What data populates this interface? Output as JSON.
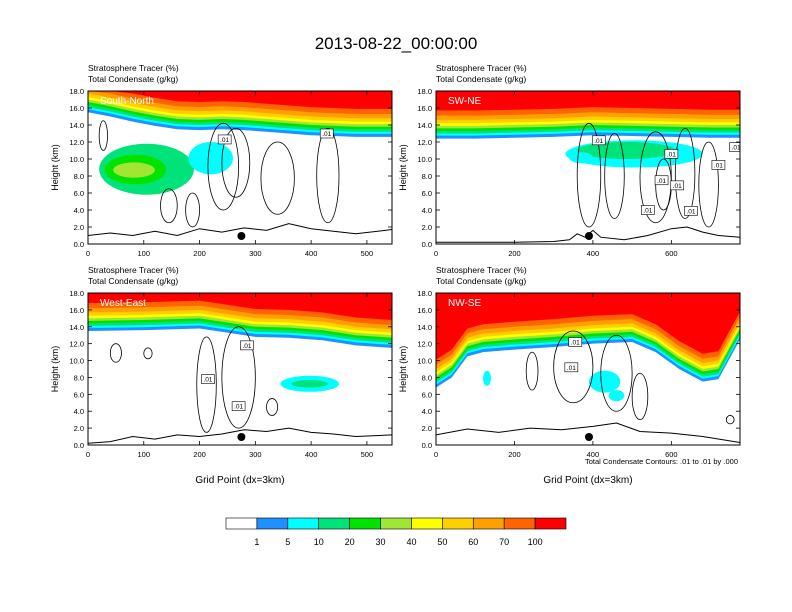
{
  "figure": {
    "title": "2013-08-22_00:00:00",
    "footnote": "Total Condensate Contours: .01 to .01 by .000"
  },
  "chart_data": [
    {
      "type": "heatmap",
      "label": "South-North",
      "subtitle_lines": [
        "Stratosphere Tracer   (%)",
        "Total Condensate   (g/kg)"
      ],
      "ylabel": "Height (km)",
      "xlabel": "",
      "xlim": [
        0,
        545
      ],
      "ylim": [
        0,
        18
      ],
      "xticks": [
        0,
        100,
        200,
        300,
        400,
        500
      ],
      "yticks": [
        "0.0",
        "2.0",
        "4.0",
        "6.0",
        "8.0",
        "10.0",
        "12.0",
        "14.0",
        "16.0",
        "18.0"
      ],
      "dot_x": 275,
      "tracer_base": [
        [
          0,
          15.5
        ],
        [
          40,
          15.0
        ],
        [
          80,
          14.4
        ],
        [
          120,
          13.9
        ],
        [
          160,
          13.5
        ],
        [
          200,
          13.4
        ],
        [
          240,
          13.5
        ],
        [
          280,
          13.4
        ],
        [
          320,
          13.2
        ],
        [
          360,
          13.0
        ],
        [
          400,
          12.8
        ],
        [
          440,
          12.7
        ],
        [
          480,
          12.6
        ],
        [
          545,
          12.6
        ]
      ],
      "low_blobs": [
        {
          "x": [
            20,
            190
          ],
          "y": [
            5.8,
            11.8
          ],
          "level": 10
        },
        {
          "x": [
            30,
            140
          ],
          "y": [
            7.0,
            10.5
          ],
          "level": 20
        },
        {
          "x": [
            45,
            120
          ],
          "y": [
            7.8,
            9.6
          ],
          "level": 30
        },
        {
          "x": [
            180,
            260
          ],
          "y": [
            8.2,
            12.0
          ],
          "level": 5
        }
      ],
      "contour_labels": [
        {
          "x": 245,
          "y": 12.3,
          "text": ".01"
        },
        {
          "x": 428,
          "y": 13.0,
          "text": ".01"
        }
      ],
      "terrain": [
        [
          0,
          1.0
        ],
        [
          40,
          1.3
        ],
        [
          80,
          1.0
        ],
        [
          120,
          1.5
        ],
        [
          160,
          1.0
        ],
        [
          200,
          1.8
        ],
        [
          240,
          1.4
        ],
        [
          280,
          1.9
        ],
        [
          320,
          1.6
        ],
        [
          360,
          2.4
        ],
        [
          400,
          1.8
        ],
        [
          440,
          1.5
        ],
        [
          480,
          1.2
        ],
        [
          545,
          1.7
        ]
      ],
      "cloud_contours": [
        {
          "x": [
            215,
            270
          ],
          "y": [
            4.0,
            14.2
          ]
        },
        {
          "x": [
            240,
            290
          ],
          "y": [
            5.5,
            13.6
          ]
        },
        {
          "x": [
            310,
            370
          ],
          "y": [
            3.5,
            12.0
          ]
        },
        {
          "x": [
            410,
            450
          ],
          "y": [
            2.5,
            13.6
          ]
        },
        {
          "x": [
            130,
            160
          ],
          "y": [
            2.5,
            6.5
          ]
        },
        {
          "x": [
            175,
            200
          ],
          "y": [
            2.0,
            6.0
          ]
        },
        {
          "x": [
            20,
            35
          ],
          "y": [
            11.0,
            14.5
          ]
        }
      ]
    },
    {
      "type": "heatmap",
      "label": "SW-NE",
      "subtitle_lines": [
        "Stratosphere Tracer   (%)",
        "Total Condensate   (g/kg)"
      ],
      "ylabel": "Height (km)",
      "xlabel": "",
      "xlim": [
        0,
        775
      ],
      "ylim": [
        0,
        18
      ],
      "xticks": [
        0,
        200,
        400,
        600
      ],
      "yticks": [
        "0.0",
        "2.0",
        "4.0",
        "6.0",
        "8.0",
        "10.0",
        "12.0",
        "14.0",
        "16.0",
        "18.0"
      ],
      "dot_x": 390,
      "tracer_base": [
        [
          0,
          12.4
        ],
        [
          100,
          12.4
        ],
        [
          200,
          12.5
        ],
        [
          300,
          12.6
        ],
        [
          400,
          12.8
        ],
        [
          500,
          12.7
        ],
        [
          600,
          12.6
        ],
        [
          700,
          12.5
        ],
        [
          775,
          12.5
        ]
      ],
      "low_blobs": [
        {
          "x": [
            330,
            680
          ],
          "y": [
            9.0,
            12.2
          ],
          "level": 5
        },
        {
          "x": [
            360,
            610
          ],
          "y": [
            10.0,
            12.0
          ],
          "level": 10
        },
        {
          "x": [
            340,
            400
          ],
          "y": [
            9.5,
            10.8
          ],
          "level": 5
        }
      ],
      "contour_labels": [
        {
          "x": 415,
          "y": 12.2,
          "text": ".01"
        },
        {
          "x": 600,
          "y": 10.6,
          "text": ".01"
        },
        {
          "x": 720,
          "y": 9.3,
          "text": ".01"
        },
        {
          "x": 575,
          "y": 7.5,
          "text": ".01"
        },
        {
          "x": 615,
          "y": 6.9,
          "text": ".01"
        },
        {
          "x": 540,
          "y": 4.0,
          "text": ".01"
        },
        {
          "x": 650,
          "y": 3.9,
          "text": ".01"
        },
        {
          "x": 765,
          "y": 11.4,
          "text": ".01"
        }
      ],
      "terrain": [
        [
          0,
          0.2
        ],
        [
          200,
          0.2
        ],
        [
          300,
          0.3
        ],
        [
          340,
          0.5
        ],
        [
          360,
          1.2
        ],
        [
          380,
          0.8
        ],
        [
          400,
          1.6
        ],
        [
          420,
          0.8
        ],
        [
          480,
          0.5
        ],
        [
          540,
          1.0
        ],
        [
          600,
          1.8
        ],
        [
          640,
          2.0
        ],
        [
          680,
          1.4
        ],
        [
          720,
          1.0
        ],
        [
          775,
          0.8
        ]
      ],
      "cloud_contours": [
        {
          "x": [
            360,
            420
          ],
          "y": [
            2.0,
            14.2
          ]
        },
        {
          "x": [
            430,
            480
          ],
          "y": [
            3.0,
            13.0
          ]
        },
        {
          "x": [
            520,
            600
          ],
          "y": [
            2.5,
            13.2
          ]
        },
        {
          "x": [
            610,
            660
          ],
          "y": [
            3.0,
            13.6
          ]
        },
        {
          "x": [
            670,
            720
          ],
          "y": [
            2.0,
            12.0
          ]
        },
        {
          "x": [
            560,
            600
          ],
          "y": [
            4.0,
            10.0
          ]
        }
      ]
    },
    {
      "type": "heatmap",
      "label": "West-East",
      "subtitle_lines": [
        "Stratosphere Tracer   (%)",
        "Total Condensate   (g/kg)"
      ],
      "ylabel": "Height (km)",
      "xlabel": "Grid Point (dx=3km)",
      "xlim": [
        0,
        545
      ],
      "ylim": [
        0,
        18
      ],
      "xticks": [
        0,
        100,
        200,
        300,
        400,
        500
      ],
      "yticks": [
        "0.0",
        "2.0",
        "4.0",
        "6.0",
        "8.0",
        "10.0",
        "12.0",
        "14.0",
        "16.0",
        "18.0"
      ],
      "dot_x": 275,
      "tracer_base": [
        [
          0,
          13.5
        ],
        [
          100,
          13.6
        ],
        [
          200,
          13.8
        ],
        [
          260,
          13.2
        ],
        [
          300,
          12.8
        ],
        [
          360,
          12.7
        ],
        [
          420,
          12.4
        ],
        [
          480,
          11.8
        ],
        [
          545,
          11.5
        ]
      ],
      "low_blobs": [
        {
          "x": [
            345,
            450
          ],
          "y": [
            6.3,
            8.2
          ],
          "level": 5
        },
        {
          "x": [
            365,
            430
          ],
          "y": [
            6.8,
            7.7
          ],
          "level": 10
        }
      ],
      "contour_labels": [
        {
          "x": 285,
          "y": 11.8,
          "text": ".01"
        },
        {
          "x": 215,
          "y": 7.8,
          "text": ".01"
        },
        {
          "x": 270,
          "y": 4.6,
          "text": ".01"
        }
      ],
      "terrain": [
        [
          0,
          0.2
        ],
        [
          40,
          0.4
        ],
        [
          80,
          1.0
        ],
        [
          120,
          0.7
        ],
        [
          160,
          1.2
        ],
        [
          200,
          1.0
        ],
        [
          240,
          1.3
        ],
        [
          280,
          1.8
        ],
        [
          320,
          1.6
        ],
        [
          360,
          2.0
        ],
        [
          400,
          1.5
        ],
        [
          440,
          1.3
        ],
        [
          480,
          1.0
        ],
        [
          545,
          1.2
        ]
      ],
      "cloud_contours": [
        {
          "x": [
            195,
            230
          ],
          "y": [
            1.5,
            12.8
          ]
        },
        {
          "x": [
            240,
            300
          ],
          "y": [
            2.0,
            14.0
          ]
        },
        {
          "x": [
            320,
            340
          ],
          "y": [
            3.5,
            5.5
          ]
        },
        {
          "x": [
            40,
            60
          ],
          "y": [
            9.8,
            12.0
          ]
        },
        {
          "x": [
            100,
            115
          ],
          "y": [
            10.2,
            11.5
          ]
        }
      ]
    },
    {
      "type": "heatmap",
      "label": "NW-SE",
      "subtitle_lines": [
        "Stratosphere Tracer   (%)",
        "Total Condensate   (g/kg)"
      ],
      "ylabel": "Height (km)",
      "xlabel": "Grid Point (dx=3km)",
      "xlim": [
        0,
        775
      ],
      "ylim": [
        0,
        18
      ],
      "xticks": [
        0,
        200,
        400,
        600
      ],
      "yticks": [
        "0.0",
        "2.0",
        "4.0",
        "6.0",
        "8.0",
        "10.0",
        "12.0",
        "14.0",
        "16.0",
        "18.0"
      ],
      "dot_x": 390,
      "tracer_base": [
        [
          0,
          6.8
        ],
        [
          40,
          8.0
        ],
        [
          80,
          10.5
        ],
        [
          120,
          11.0
        ],
        [
          200,
          11.3
        ],
        [
          300,
          11.6
        ],
        [
          400,
          12.0
        ],
        [
          500,
          12.2
        ],
        [
          560,
          11.0
        ],
        [
          620,
          9.0
        ],
        [
          680,
          7.5
        ],
        [
          720,
          7.8
        ],
        [
          775,
          12.5
        ]
      ],
      "low_blobs": [
        {
          "x": [
            120,
            140
          ],
          "y": [
            7.0,
            8.8
          ],
          "level": 5
        },
        {
          "x": [
            390,
            470
          ],
          "y": [
            6.2,
            8.8
          ],
          "level": 5
        },
        {
          "x": [
            440,
            480
          ],
          "y": [
            5.2,
            6.5
          ],
          "level": 5
        }
      ],
      "contour_labels": [
        {
          "x": 355,
          "y": 12.2,
          "text": ".01"
        },
        {
          "x": 345,
          "y": 9.2,
          "text": ".01"
        }
      ],
      "terrain": [
        [
          0,
          1.2
        ],
        [
          80,
          1.9
        ],
        [
          160,
          1.5
        ],
        [
          240,
          2.0
        ],
        [
          320,
          1.8
        ],
        [
          400,
          2.2
        ],
        [
          460,
          2.6
        ],
        [
          520,
          1.6
        ],
        [
          600,
          1.4
        ],
        [
          680,
          1.0
        ],
        [
          775,
          0.3
        ]
      ],
      "cloud_contours": [
        {
          "x": [
            300,
            400
          ],
          "y": [
            5.0,
            13.5
          ]
        },
        {
          "x": [
            420,
            500
          ],
          "y": [
            4.0,
            13.0
          ]
        },
        {
          "x": [
            500,
            540
          ],
          "y": [
            3.0,
            8.5
          ]
        },
        {
          "x": [
            230,
            260
          ],
          "y": [
            6.5,
            11.0
          ]
        },
        {
          "x": [
            740,
            760
          ],
          "y": [
            2.5,
            3.5
          ]
        }
      ]
    }
  ],
  "colorbar": {
    "levels": [
      "1",
      "5",
      "10",
      "20",
      "30",
      "40",
      "50",
      "60",
      "70",
      "100"
    ],
    "colors": [
      "#ffffff",
      "#1e90ff",
      "#00ffff",
      "#00e27a",
      "#00e200",
      "#a0e632",
      "#ffff00",
      "#ffd000",
      "#ffa000",
      "#ff6400",
      "#ff0000"
    ]
  }
}
